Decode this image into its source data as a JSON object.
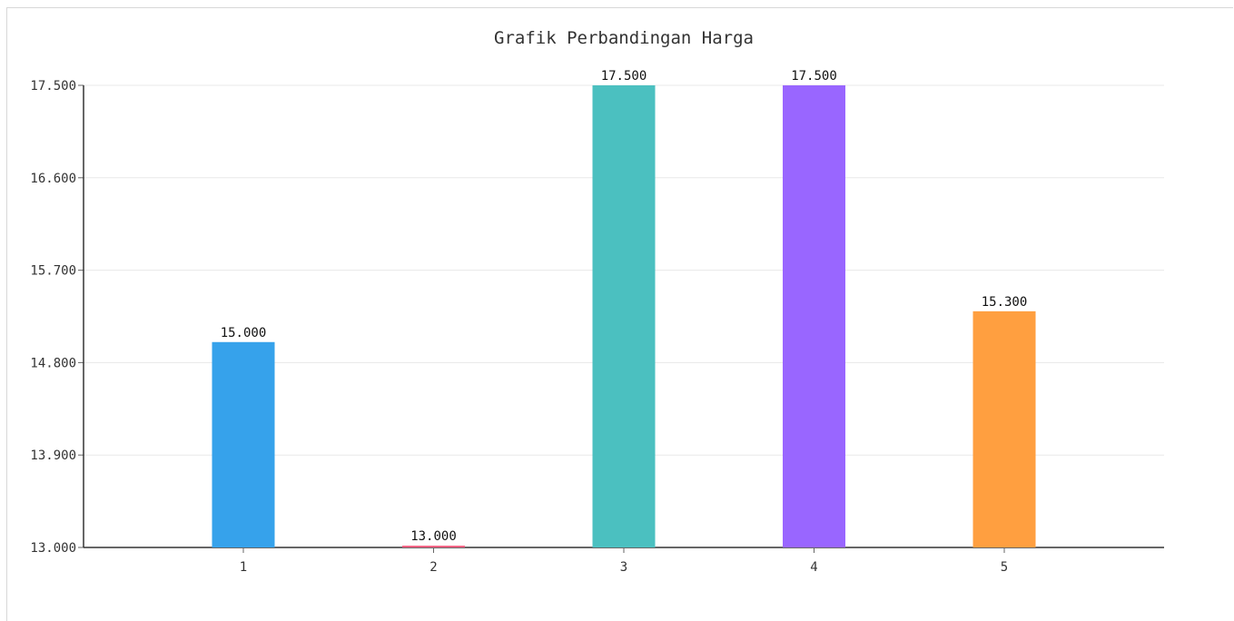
{
  "chart_data": {
    "type": "bar",
    "title": "Grafik Perbandingan Harga",
    "xlabel": "",
    "ylabel": "",
    "categories": [
      "1",
      "2",
      "3",
      "4",
      "5"
    ],
    "values": [
      15000,
      13000,
      17500,
      17500,
      15300
    ],
    "value_labels": [
      "15.000",
      "13.000",
      "17.500",
      "17.500",
      "15.300"
    ],
    "ylim": [
      13000,
      17500
    ],
    "yticks": [
      13000,
      13900,
      14800,
      15700,
      16600,
      17500
    ],
    "ytick_labels": [
      "13.000",
      "13.900",
      "14.800",
      "15.700",
      "16.600",
      "17.500"
    ],
    "colors": [
      "#36a2eb",
      "#ff6384",
      "#4bc0c0",
      "#9966ff",
      "#ff9f40"
    ],
    "grid": true,
    "legend": "none"
  }
}
